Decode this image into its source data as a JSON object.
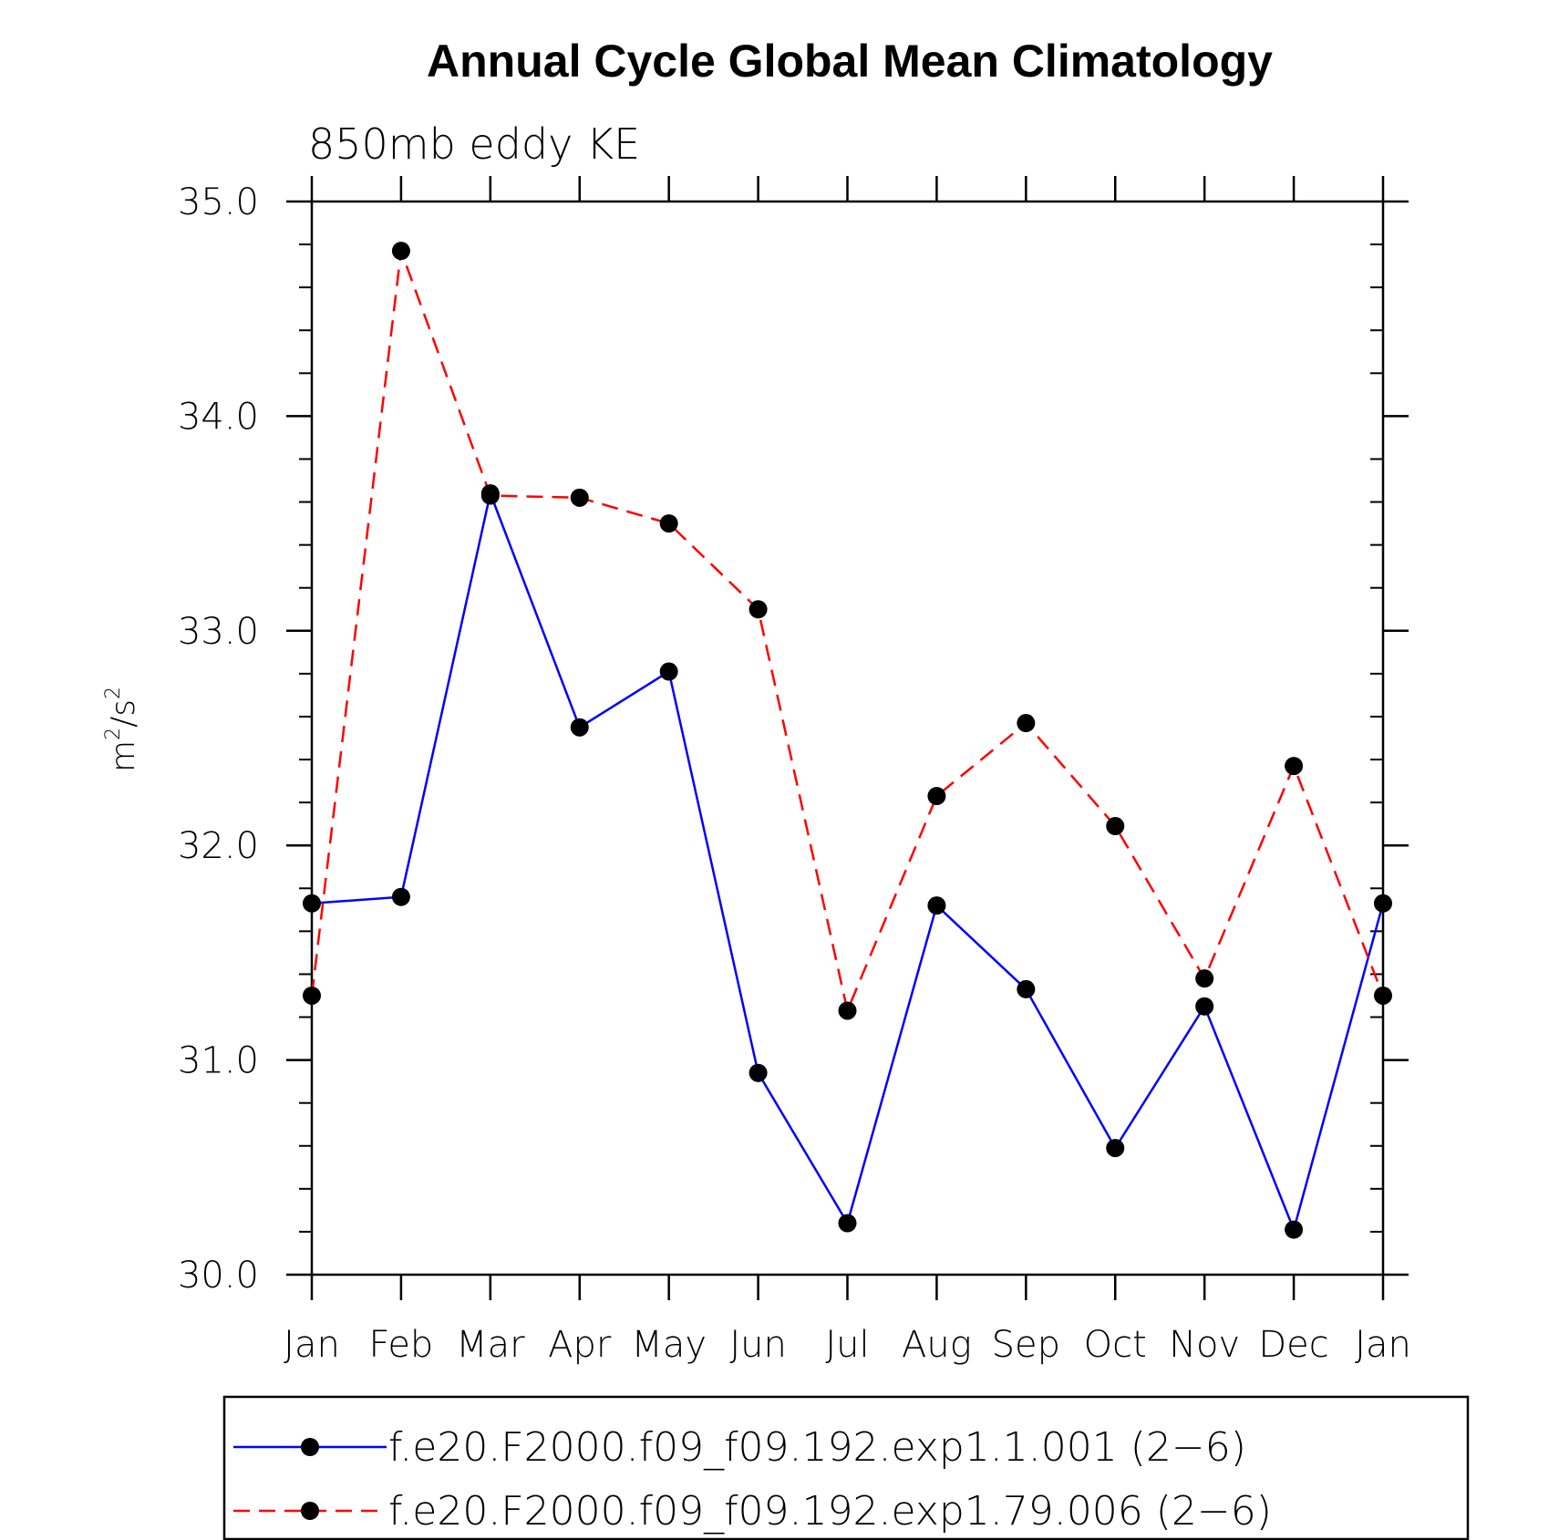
{
  "chart_data": {
    "type": "line",
    "title": "Annual Cycle Global Mean Climatology",
    "subtitle": "850mb eddy KE",
    "ylabel": {
      "base": "m",
      "sup1": "2",
      "mid": "/s",
      "sup2": "2"
    },
    "categories": [
      "Jan",
      "Feb",
      "Mar",
      "Apr",
      "May",
      "Jun",
      "Jul",
      "Aug",
      "Sep",
      "Oct",
      "Nov",
      "Dec",
      "Jan"
    ],
    "ylim": [
      30.0,
      35.0
    ],
    "yticks": [
      30.0,
      31.0,
      32.0,
      33.0,
      34.0,
      35.0
    ],
    "ytick_labels": [
      "30.0",
      "31.0",
      "32.0",
      "33.0",
      "34.0",
      "35.0"
    ],
    "y_minor_step": 0.2,
    "series": [
      {
        "name": "f.e20.F2000.f09_f09.192.exp1.1.001 (2−6)",
        "color": "#0000ff",
        "dash": "solid",
        "values": [
          31.73,
          31.76,
          33.64,
          32.55,
          32.81,
          30.94,
          30.24,
          31.72,
          31.33,
          30.59,
          31.25,
          30.21,
          31.73
        ]
      },
      {
        "name": "f.e20.F2000.f09_f09.192.exp1.79.006 (2−6)",
        "color": "#ff0000",
        "dash": "dashed",
        "values": [
          31.3,
          34.77,
          33.63,
          33.62,
          33.5,
          33.1,
          31.23,
          32.23,
          32.57,
          32.09,
          31.38,
          32.37,
          31.3
        ]
      }
    ],
    "marker": "filled-circle",
    "marker_color": "#000000",
    "legend_position": "bottom"
  }
}
